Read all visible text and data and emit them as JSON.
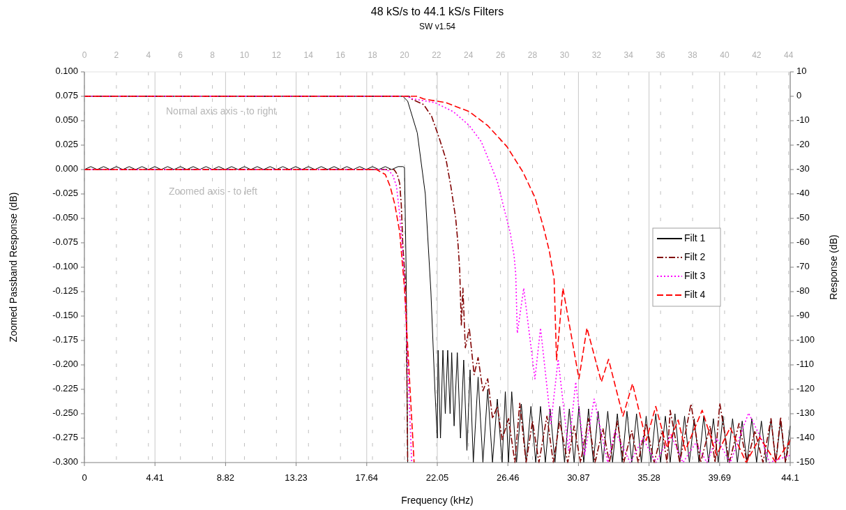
{
  "chart_data": {
    "type": "line",
    "title": "48 kS/s to 44.1 kS/s Filters",
    "subtitle": "SW v1.54",
    "xlabel": "Frequency (kHz)",
    "ylabel": "Zoomed Passband Response (dB)",
    "y2label": "Response (dB)",
    "annotations": [
      "Normal axis axis - to right",
      "Zoomed axis - to left"
    ],
    "xlim": [
      0,
      44.1
    ],
    "xticks": [
      0,
      4.41,
      8.82,
      13.23,
      17.64,
      22.05,
      26.46,
      30.87,
      35.28,
      39.69,
      44.1
    ],
    "x2lim": [
      0,
      44.1
    ],
    "x2ticks": [
      0,
      2,
      4,
      6,
      8,
      10,
      12,
      14,
      16,
      18,
      20,
      22,
      24,
      26,
      28,
      30,
      32,
      34,
      36,
      38,
      40,
      42,
      44
    ],
    "ylim": [
      -0.3,
      0.1
    ],
    "yticks": [
      {
        "value": 0.1,
        "label": "0.100"
      },
      {
        "value": 0.075,
        "label": "0.075"
      },
      {
        "value": 0.05,
        "label": "0.050"
      },
      {
        "value": 0.025,
        "label": "0.025"
      },
      {
        "value": 0,
        "label": "0.000"
      },
      {
        "value": -0.025,
        "label": "-0.025"
      },
      {
        "value": -0.05,
        "label": "-0.050"
      },
      {
        "value": -0.075,
        "label": "-0.075"
      },
      {
        "value": -0.1,
        "label": "-0.100"
      },
      {
        "value": -0.125,
        "label": "-0.125"
      },
      {
        "value": -0.15,
        "label": "-0.150"
      },
      {
        "value": -0.175,
        "label": "-0.175"
      },
      {
        "value": -0.2,
        "label": "-0.200"
      },
      {
        "value": -0.225,
        "label": "-0.225"
      },
      {
        "value": -0.25,
        "label": "-0.250"
      },
      {
        "value": -0.275,
        "label": "-0.275"
      },
      {
        "value": -0.3,
        "label": "-0.300"
      }
    ],
    "y2lim": [
      -150,
      10
    ],
    "y2ticks": [
      10,
      0,
      -10,
      -20,
      -30,
      -40,
      -50,
      -60,
      -70,
      -80,
      -90,
      -100,
      -110,
      -120,
      -130,
      -140,
      -150
    ],
    "grid": "x",
    "legend": "right",
    "marker": "none",
    "series": [
      {
        "name": "Filt 1",
        "color": "#000000",
        "line_style": "solid",
        "axis": "y2",
        "x": [
          0,
          19.9,
          20.2,
          20.8,
          21.3,
          21.65,
          21.9,
          22.05,
          22.1,
          22.25,
          22.4,
          22.55,
          22.7,
          22.85,
          22.95,
          23.1,
          23.3,
          23.5,
          23.7,
          23.9,
          24.1,
          24.3,
          24.6,
          24.9,
          25.2,
          25.5,
          25.8,
          26.1,
          26.3,
          26.5,
          26.7,
          27.0,
          27.3,
          27.6,
          27.9,
          28.2,
          28.5,
          28.8,
          29.1,
          29.4,
          29.7,
          30.0,
          30.3,
          30.6,
          30.9,
          31.2,
          31.5,
          31.8,
          32.1,
          32.4,
          32.7,
          33.0,
          33.3,
          33.6,
          33.9,
          34.2,
          34.5,
          34.8,
          35.1,
          35.4,
          35.7,
          36.0,
          36.3,
          36.6,
          36.9,
          37.2,
          37.5,
          37.8,
          38.1,
          38.4,
          38.7,
          39.0,
          39.3,
          39.6,
          39.9,
          40.2,
          40.5,
          40.8,
          41.1,
          41.4,
          41.7,
          42.0,
          42.3,
          42.6,
          42.9,
          43.2,
          43.5,
          43.8,
          44.1
        ],
        "values": [
          0,
          0,
          -2,
          -15,
          -40,
          -80,
          -120,
          -140,
          -104,
          -140,
          -104,
          -130,
          -104,
          -130,
          -105,
          -135,
          -105,
          -140,
          -108,
          -145,
          -112,
          -150,
          -115,
          -150,
          -120,
          -150,
          -124,
          -150,
          -121,
          -150,
          -121,
          -150,
          -126,
          -150,
          -127,
          -150,
          -127,
          -150,
          -128,
          -150,
          -127,
          -150,
          -128,
          -150,
          -127,
          -150,
          -128,
          -150,
          -129,
          -150,
          -129,
          -150,
          -130,
          -150,
          -129,
          -150,
          -130,
          -150,
          -131,
          -150,
          -130,
          -150,
          -131,
          -150,
          -130,
          -150,
          -131,
          -150,
          -132,
          -150,
          -131,
          -150,
          -132,
          -150,
          -131,
          -150,
          -132,
          -150,
          -133,
          -150,
          -132,
          -150,
          -133,
          -150,
          -132,
          -150,
          -133,
          -150,
          -135
        ]
      },
      {
        "name": "Filt 2",
        "color": "#800000",
        "line_style": "dashdot",
        "axis": "y2",
        "x": [
          0,
          20.3,
          20.4,
          21.2,
          21.7,
          22.2,
          22.6,
          22.9,
          23.2,
          23.35,
          23.45,
          23.55,
          23.65,
          23.8,
          24.05,
          24.35,
          24.6,
          24.9,
          25.2,
          25.5,
          25.8,
          26.1,
          26.5,
          26.9,
          27.2,
          27.6,
          28.0,
          28.4,
          28.9,
          29.3,
          29.7,
          30.2,
          30.6,
          31.0,
          31.5,
          31.9,
          32.4,
          32.8,
          33.3,
          33.7,
          34.2,
          34.6,
          35.1,
          35.6,
          36.1,
          36.4,
          36.6,
          37.2,
          37.9,
          38.5,
          39.1,
          39.4,
          39.7,
          40.3,
          40.9,
          41.4,
          41.9,
          42.4,
          42.9,
          43.2,
          43.5,
          43.8,
          44.1
        ],
        "values": [
          0,
          0,
          -1,
          -3.4,
          -8.3,
          -17.7,
          -26,
          -37,
          -50,
          -61,
          -71,
          -94,
          -78.6,
          -103,
          -95,
          -114,
          -107,
          -120.6,
          -115.7,
          -132,
          -127,
          -140.6,
          -132,
          -150,
          -125.7,
          -150,
          -133,
          -150,
          -131,
          -150,
          -133,
          -150,
          -135,
          -150,
          -132,
          -150,
          -136,
          -150,
          -133,
          -150,
          -137,
          -150,
          -134,
          -150,
          -137,
          -150,
          -128.6,
          -150,
          -126,
          -150,
          -135,
          -150,
          -125.7,
          -150,
          -134,
          -150,
          -137,
          -150,
          -132,
          -150,
          -131.4,
          -150,
          -140
        ]
      },
      {
        "name": "Filt 3",
        "color": "#ff00ff",
        "line_style": "dotted",
        "axis": "y2",
        "x": [
          0,
          20.2,
          20.4,
          21.9,
          23.05,
          24.05,
          24.8,
          25.4,
          25.8,
          26.2,
          26.6,
          26.85,
          26.95,
          27.05,
          27.45,
          28.15,
          28.5,
          29.15,
          29.6,
          30.25,
          30.7,
          31.25,
          31.85,
          32.7,
          33.15,
          34.1,
          34.9,
          35.7,
          36.65,
          37.4,
          38.2,
          38.9,
          39.5,
          40.35,
          41.5,
          42.35,
          42.8,
          44.1
        ],
        "values": [
          0,
          0,
          -0.9,
          -2.6,
          -6.3,
          -12,
          -18.6,
          -28.3,
          -34.9,
          -45.4,
          -55.7,
          -65.4,
          -72.9,
          -97,
          -78.6,
          -115.7,
          -94.9,
          -134,
          -107.7,
          -145,
          -117,
          -147,
          -124,
          -150,
          -137,
          -150,
          -140,
          -150,
          -138.6,
          -150,
          -142,
          -150,
          -140,
          -150,
          -129.7,
          -141,
          -150,
          -147
        ]
      },
      {
        "name": "Filt 4",
        "color": "#ff0000",
        "line_style": "dashed",
        "axis": "y2",
        "x": [
          0,
          20.8,
          21.2,
          22.6,
          24.05,
          25.2,
          26.4,
          27.4,
          28.15,
          28.7,
          29.05,
          29.35,
          29.5,
          29.9,
          30.9,
          31.4,
          32.3,
          32.75,
          33.65,
          34.25,
          35.1,
          35.7,
          36.4,
          37.1,
          37.55,
          38.6,
          39.5,
          40.35,
          41.35,
          42.2,
          43.2,
          44.1
        ],
        "values": [
          0,
          0,
          -1.1,
          -2.6,
          -6.3,
          -12,
          -20.6,
          -31,
          -41.4,
          -54,
          -63.4,
          -74.9,
          -108,
          -78.6,
          -115.7,
          -94.9,
          -117,
          -107.7,
          -131,
          -117.7,
          -141,
          -127,
          -144,
          -132.6,
          -145,
          -128.6,
          -147,
          -135.7,
          -150,
          -139.7,
          -150,
          -141
        ]
      },
      {
        "color": "#000000",
        "line_style": "solid",
        "x": [
          0,
          0.4,
          0.8,
          1.2,
          1.6,
          2.0,
          2.4,
          2.8,
          3.2,
          3.6,
          4.0,
          4.4,
          4.8,
          5.2,
          5.6,
          6.0,
          6.4,
          6.8,
          7.2,
          7.6,
          8.0,
          8.4,
          8.8,
          9.2,
          9.6,
          10.0,
          10.4,
          10.8,
          11.2,
          11.6,
          12.0,
          12.4,
          12.8,
          13.2,
          13.6,
          14.0,
          14.4,
          14.8,
          15.2,
          15.6,
          16.0,
          16.4,
          16.8,
          17.2,
          17.6,
          18.0,
          18.4,
          18.8,
          19.2,
          19.6,
          19.9,
          20.0,
          20.1,
          20.2
        ],
        "values": [
          0,
          0.003,
          0,
          0.003,
          0,
          0.003,
          0,
          0.003,
          0,
          0.003,
          0,
          0.003,
          0,
          0.003,
          0,
          0.003,
          0,
          0.003,
          0,
          0.003,
          0,
          0.003,
          0,
          0.003,
          0,
          0.003,
          0,
          0.003,
          0,
          0.003,
          0,
          0.003,
          0,
          0.003,
          0,
          0.003,
          0,
          0.003,
          0,
          0.003,
          0,
          0.003,
          0,
          0.003,
          0,
          0.003,
          0,
          0.003,
          0,
          0.003,
          0.003,
          0.002,
          -0.1,
          -0.3
        ]
      },
      {
        "color": "#800000",
        "line_style": "dashdot",
        "x": [
          0,
          19.35,
          19.55,
          19.7,
          19.8,
          19.9,
          20.1,
          20.2
        ],
        "values": [
          0,
          0,
          -0.005,
          -0.014,
          -0.036,
          -0.079,
          -0.126,
          -0.3
        ]
      },
      {
        "color": "#ff00ff",
        "line_style": "dotted",
        "x": [
          0,
          18.9,
          19.25,
          19.5,
          19.7,
          19.85,
          20.0,
          20.45
        ],
        "values": [
          0,
          0,
          -0.005,
          -0.017,
          -0.046,
          -0.079,
          -0.114,
          -0.3
        ]
      },
      {
        "color": "#ff0000",
        "line_style": "dashed",
        "x": [
          0,
          18.25,
          18.8,
          19.1,
          19.4,
          19.7,
          19.85,
          20.0,
          20.6
        ],
        "values": [
          0,
          0,
          -0.005,
          -0.017,
          -0.036,
          -0.064,
          -0.093,
          -0.121,
          -0.3
        ]
      }
    ]
  }
}
